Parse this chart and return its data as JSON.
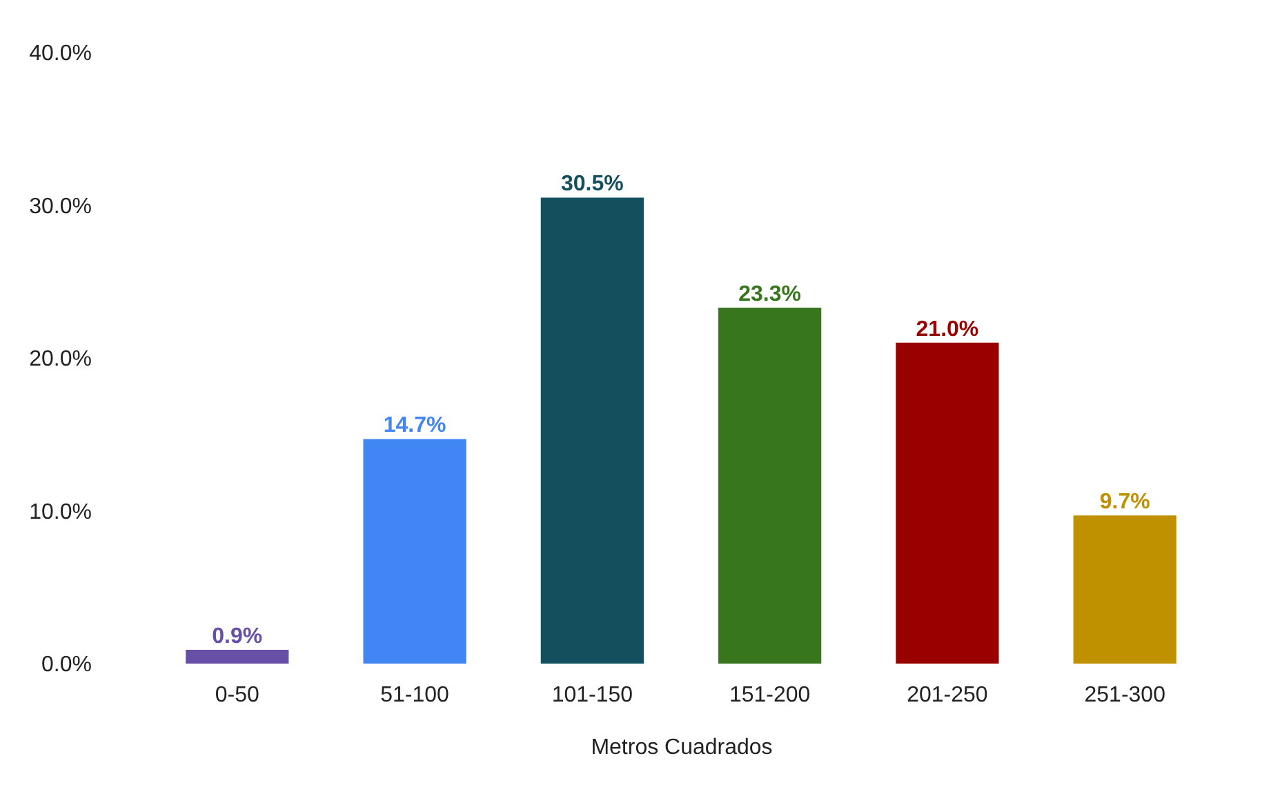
{
  "chart_data": {
    "type": "bar",
    "xlabel": "Metros Cuadrados",
    "categories": [
      "0-50",
      "51-100",
      "101-150",
      "151-200",
      "201-250",
      "251-300"
    ],
    "values": [
      0.9,
      14.7,
      30.5,
      23.3,
      21.0,
      9.7
    ],
    "colors": [
      "#674ea7",
      "#4285f4",
      "#134f5c",
      "#38761d",
      "#990000",
      "#bf9000"
    ],
    "value_labels": [
      "0.9%",
      "14.7%",
      "30.5%",
      "23.3%",
      "21.0%",
      "9.7%"
    ],
    "ylim": [
      0,
      40
    ],
    "yticks": [
      {
        "value": 0,
        "label": "0.0%"
      },
      {
        "value": 10,
        "label": "10.0%"
      },
      {
        "value": 20,
        "label": "20.0%"
      },
      {
        "value": 30,
        "label": "30.0%"
      },
      {
        "value": 40,
        "label": "40.0%"
      }
    ],
    "grid": false
  }
}
